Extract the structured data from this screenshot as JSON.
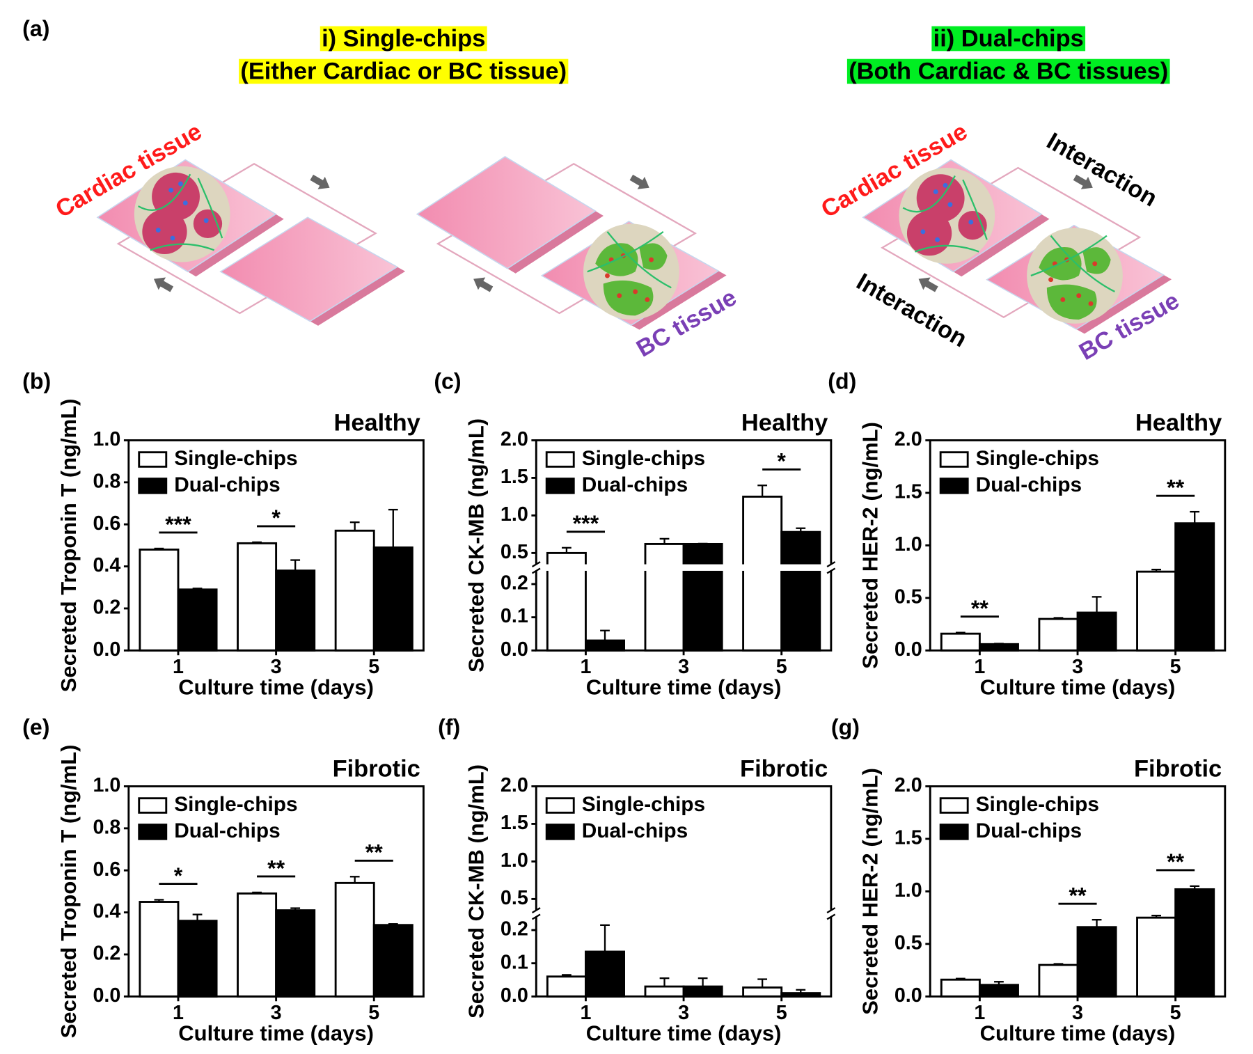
{
  "figure": {
    "panel_label": "(a)",
    "single_title": "i) Single-chips",
    "single_subtitle": "(Either Cardiac or BC tissue)",
    "dual_title": "ii) Dual-chips",
    "dual_subtitle": "(Both Cardiac & BC tissues)",
    "labels": [
      "Cardiac tissue",
      "BC tissue",
      "Cardiac tissue",
      "BC tissue",
      "Interaction",
      "Interaction"
    ]
  },
  "chart_data": [
    {
      "type": "bar",
      "panel_label": "(b)",
      "title": "Healthy",
      "x_label": "Culture time (days)",
      "y_label": "Secreted Troponin T (ng/mL)",
      "categories": [
        "1",
        "3",
        "5"
      ],
      "series": [
        {
          "name": "Single-chips",
          "color": "#ffffff",
          "values": [
            0.48,
            0.51,
            0.57
          ],
          "errors": [
            0.005,
            0.005,
            0.04
          ]
        },
        {
          "name": "Dual-chips",
          "color": "#000000",
          "values": [
            0.29,
            0.38,
            0.49
          ],
          "errors": [
            0.005,
            0.05,
            0.18
          ]
        }
      ],
      "significance": [
        "***",
        "*",
        null
      ],
      "ylim": [
        0,
        1.0
      ],
      "yticks": [
        {
          "value": 0,
          "label": "0.0"
        },
        0.2,
        0.4,
        0.6,
        0.8,
        {
          "value": 1.0,
          "label": "1.0"
        }
      ],
      "legend": "upper left"
    },
    {
      "type": "bar",
      "panel_label": "(c)",
      "title": "Healthy",
      "x_label": "Culture time (days)",
      "y_label": "Secreted CK-MB (ng/mL)",
      "categories": [
        "1",
        "3",
        "5"
      ],
      "series": [
        {
          "name": "Single-chips",
          "color": "#ffffff",
          "values": [
            0.5,
            0.62,
            1.25
          ],
          "errors": [
            0.07,
            0.07,
            0.15
          ]
        },
        {
          "name": "Dual-chips",
          "color": "#000000",
          "values": [
            0.03,
            0.62,
            0.78
          ],
          "errors": [
            0.03,
            0.005,
            0.05
          ]
        }
      ],
      "significance": [
        "***",
        null,
        "*"
      ],
      "ylim": [
        0,
        2.0
      ],
      "y_break": [
        0.24,
        0.35
      ],
      "yticks": [
        {
          "value": 0,
          "label": "0.0"
        },
        0.1,
        0.2,
        0.5,
        {
          "value": 1.0,
          "label": "1.0"
        },
        1.5,
        {
          "value": 2.0,
          "label": "2.0"
        }
      ],
      "legend": "upper left"
    },
    {
      "type": "bar",
      "panel_label": "(d)",
      "title": "Healthy",
      "x_label": "Culture time (days)",
      "y_label": "Secreted HER-2 (ng/mL)",
      "categories": [
        "1",
        "3",
        "5"
      ],
      "series": [
        {
          "name": "Single-chips",
          "color": "#ffffff",
          "values": [
            0.16,
            0.3,
            0.75
          ],
          "errors": [
            0.01,
            0.01,
            0.02
          ]
        },
        {
          "name": "Dual-chips",
          "color": "#000000",
          "values": [
            0.06,
            0.36,
            1.21
          ],
          "errors": [
            0.005,
            0.15,
            0.11
          ]
        }
      ],
      "significance": [
        "**",
        null,
        "**"
      ],
      "ylim": [
        0,
        2.0
      ],
      "yticks": [
        {
          "value": 0,
          "label": "0.0"
        },
        0.5,
        {
          "value": 1.0,
          "label": "1.0"
        },
        1.5,
        {
          "value": 2.0,
          "label": "2.0"
        }
      ],
      "legend": "upper left"
    },
    {
      "type": "bar",
      "panel_label": "(e)",
      "title": "Fibrotic",
      "x_label": "Culture time (days)",
      "y_label": "Secreted Troponin T (ng/mL)",
      "categories": [
        "1",
        "3",
        "5"
      ],
      "series": [
        {
          "name": "Single-chips",
          "color": "#ffffff",
          "values": [
            0.45,
            0.49,
            0.54
          ],
          "errors": [
            0.01,
            0.005,
            0.03
          ]
        },
        {
          "name": "Dual-chips",
          "color": "#000000",
          "values": [
            0.36,
            0.41,
            0.34
          ],
          "errors": [
            0.03,
            0.01,
            0.005
          ]
        }
      ],
      "significance": [
        "*",
        "**",
        "**"
      ],
      "ylim": [
        0,
        1.0
      ],
      "yticks": [
        {
          "value": 0,
          "label": "0.0"
        },
        0.2,
        0.4,
        0.6,
        0.8,
        {
          "value": 1.0,
          "label": "1.0"
        }
      ],
      "legend": "upper left"
    },
    {
      "type": "bar",
      "panel_label": "(f)",
      "title": "Fibrotic",
      "x_label": "Culture time (days)",
      "y_label": "Secreted CK-MB (ng/mL)",
      "categories": [
        "1",
        "3",
        "5"
      ],
      "series": [
        {
          "name": "Single-chips",
          "color": "#ffffff",
          "values": [
            0.06,
            0.03,
            0.027
          ],
          "errors": [
            0.005,
            0.025,
            0.025
          ]
        },
        {
          "name": "Dual-chips",
          "color": "#000000",
          "values": [
            0.135,
            0.03,
            0.01
          ],
          "errors": [
            0.08,
            0.025,
            0.01
          ]
        }
      ],
      "significance": [
        null,
        null,
        null
      ],
      "ylim": [
        0,
        2.0
      ],
      "y_break": [
        0.24,
        0.35
      ],
      "yticks": [
        {
          "value": 0,
          "label": "0.0"
        },
        0.1,
        0.2,
        0.5,
        {
          "value": 1.0,
          "label": "1.0"
        },
        1.5,
        {
          "value": 2.0,
          "label": "2.0"
        }
      ],
      "legend": "upper left"
    },
    {
      "type": "bar",
      "panel_label": "(g)",
      "title": "Fibrotic",
      "x_label": "Culture time (days)",
      "y_label": "Secreted HER-2 (ng/mL)",
      "categories": [
        "1",
        "3",
        "5"
      ],
      "series": [
        {
          "name": "Single-chips",
          "color": "#ffffff",
          "values": [
            0.16,
            0.3,
            0.75
          ],
          "errors": [
            0.01,
            0.01,
            0.02
          ]
        },
        {
          "name": "Dual-chips",
          "color": "#000000",
          "values": [
            0.11,
            0.66,
            1.02
          ],
          "errors": [
            0.03,
            0.07,
            0.03
          ]
        }
      ],
      "significance": [
        null,
        "**",
        "**"
      ],
      "ylim": [
        0,
        2.0
      ],
      "yticks": [
        {
          "value": 0,
          "label": "0.0"
        },
        0.5,
        {
          "value": 1.0,
          "label": "1.0"
        },
        1.5,
        {
          "value": 2.0,
          "label": "2.0"
        }
      ],
      "legend": "upper left"
    }
  ]
}
